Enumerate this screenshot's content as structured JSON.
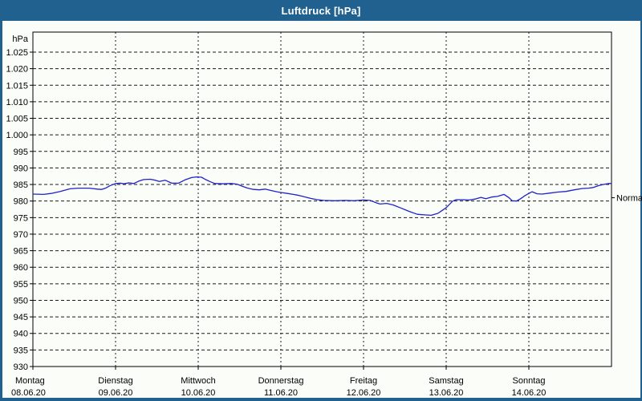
{
  "window": {
    "title": "Luftdruck [hPa]"
  },
  "colors": {
    "titlebar_bg": "#20618f",
    "titlebar_text": "#ffffff",
    "window_border": "#20618f",
    "content_bg": "#fbfdf9",
    "plot_border": "#000000",
    "gridline": "#1a1a1a",
    "series_line": "#2121c8",
    "label_text": "#000000"
  },
  "chart_data": {
    "type": "line",
    "title": "Luftdruck [hPa]",
    "unit_label": "hPa",
    "ylabel": "hPa",
    "grid": "dashed horizontal every 5 hPa, dashed vertical at each day boundary",
    "legend_position": "none",
    "ylim_draw": [
      930,
      1031
    ],
    "yticks": [
      {
        "value": 1025,
        "label": "1.025"
      },
      {
        "value": 1020,
        "label": "1.020"
      },
      {
        "value": 1015,
        "label": "1.015"
      },
      {
        "value": 1010,
        "label": "1.010"
      },
      {
        "value": 1005,
        "label": "1.005"
      },
      {
        "value": 1000,
        "label": "1.000"
      },
      {
        "value": 995,
        "label": "995"
      },
      {
        "value": 990,
        "label": "990"
      },
      {
        "value": 985,
        "label": "985"
      },
      {
        "value": 980,
        "label": "980"
      },
      {
        "value": 975,
        "label": "975"
      },
      {
        "value": 970,
        "label": "970"
      },
      {
        "value": 965,
        "label": "965"
      },
      {
        "value": 960,
        "label": "960"
      },
      {
        "value": 955,
        "label": "955"
      },
      {
        "value": 950,
        "label": "950"
      },
      {
        "value": 945,
        "label": "945"
      },
      {
        "value": 940,
        "label": "940"
      },
      {
        "value": 935,
        "label": "935"
      },
      {
        "value": 930,
        "label": "930"
      }
    ],
    "days": [
      {
        "name": "Montag",
        "date": "08.06.20"
      },
      {
        "name": "Dienstag",
        "date": "09.06.20"
      },
      {
        "name": "Mittwoch",
        "date": "10.06.20"
      },
      {
        "name": "Donnerstag",
        "date": "11.06.20"
      },
      {
        "name": "Freitag",
        "date": "12.06.20"
      },
      {
        "name": "Samstag",
        "date": "13.06.20"
      },
      {
        "name": "Sonntag",
        "date": "14.06.20"
      }
    ],
    "normal_marker": {
      "label": "Normal",
      "value": 981
    },
    "series": [
      {
        "name": "Luftdruck",
        "color": "#2121c8",
        "points": [
          [
            0.0,
            982.1
          ],
          [
            0.13,
            982.0
          ],
          [
            0.22,
            982.3
          ],
          [
            0.33,
            982.9
          ],
          [
            0.45,
            983.7
          ],
          [
            0.55,
            983.9
          ],
          [
            0.68,
            983.9
          ],
          [
            0.78,
            983.6
          ],
          [
            0.83,
            983.5
          ],
          [
            0.88,
            983.9
          ],
          [
            0.93,
            984.6
          ],
          [
            1.0,
            985.3
          ],
          [
            1.06,
            985.4
          ],
          [
            1.1,
            985.2
          ],
          [
            1.16,
            985.5
          ],
          [
            1.22,
            985.3
          ],
          [
            1.28,
            986.0
          ],
          [
            1.34,
            986.5
          ],
          [
            1.42,
            986.6
          ],
          [
            1.48,
            986.3
          ],
          [
            1.53,
            985.9
          ],
          [
            1.6,
            986.3
          ],
          [
            1.68,
            985.4
          ],
          [
            1.76,
            985.4
          ],
          [
            1.84,
            986.4
          ],
          [
            1.92,
            987.1
          ],
          [
            1.98,
            987.3
          ],
          [
            2.04,
            987.2
          ],
          [
            2.09,
            986.5
          ],
          [
            2.14,
            985.9
          ],
          [
            2.2,
            985.3
          ],
          [
            2.3,
            985.2
          ],
          [
            2.4,
            985.3
          ],
          [
            2.47,
            985.1
          ],
          [
            2.54,
            984.4
          ],
          [
            2.6,
            983.9
          ],
          [
            2.67,
            983.5
          ],
          [
            2.74,
            983.4
          ],
          [
            2.81,
            983.6
          ],
          [
            2.88,
            983.2
          ],
          [
            2.95,
            982.8
          ],
          [
            3.0,
            982.6
          ],
          [
            3.08,
            982.3
          ],
          [
            3.15,
            982.0
          ],
          [
            3.2,
            981.8
          ],
          [
            3.28,
            981.3
          ],
          [
            3.36,
            980.8
          ],
          [
            3.44,
            980.4
          ],
          [
            3.52,
            980.2
          ],
          [
            3.65,
            980.1
          ],
          [
            3.78,
            980.2
          ],
          [
            3.88,
            980.1
          ],
          [
            4.0,
            980.3
          ],
          [
            4.08,
            980.2
          ],
          [
            4.15,
            979.5
          ],
          [
            4.2,
            979.1
          ],
          [
            4.28,
            979.3
          ],
          [
            4.36,
            978.8
          ],
          [
            4.45,
            977.9
          ],
          [
            4.55,
            976.9
          ],
          [
            4.65,
            976.0
          ],
          [
            4.75,
            975.8
          ],
          [
            4.82,
            975.7
          ],
          [
            4.9,
            976.3
          ],
          [
            4.96,
            977.3
          ],
          [
            5.0,
            978.0
          ],
          [
            5.04,
            979.0
          ],
          [
            5.08,
            980.0
          ],
          [
            5.12,
            980.4
          ],
          [
            5.2,
            980.4
          ],
          [
            5.28,
            980.3
          ],
          [
            5.35,
            980.6
          ],
          [
            5.42,
            981.1
          ],
          [
            5.48,
            980.7
          ],
          [
            5.55,
            981.2
          ],
          [
            5.62,
            981.4
          ],
          [
            5.7,
            982.0
          ],
          [
            5.76,
            981.0
          ],
          [
            5.8,
            980.1
          ],
          [
            5.85,
            980.0
          ],
          [
            5.9,
            980.7
          ],
          [
            5.95,
            981.6
          ],
          [
            6.0,
            982.3
          ],
          [
            6.04,
            982.8
          ],
          [
            6.1,
            982.2
          ],
          [
            6.16,
            982.1
          ],
          [
            6.25,
            982.4
          ],
          [
            6.35,
            982.7
          ],
          [
            6.45,
            982.9
          ],
          [
            6.55,
            983.4
          ],
          [
            6.65,
            983.8
          ],
          [
            6.72,
            983.9
          ],
          [
            6.78,
            984.1
          ],
          [
            6.85,
            984.7
          ],
          [
            6.92,
            985.1
          ],
          [
            6.97,
            985.3
          ],
          [
            7.0,
            985.3
          ]
        ]
      }
    ]
  }
}
